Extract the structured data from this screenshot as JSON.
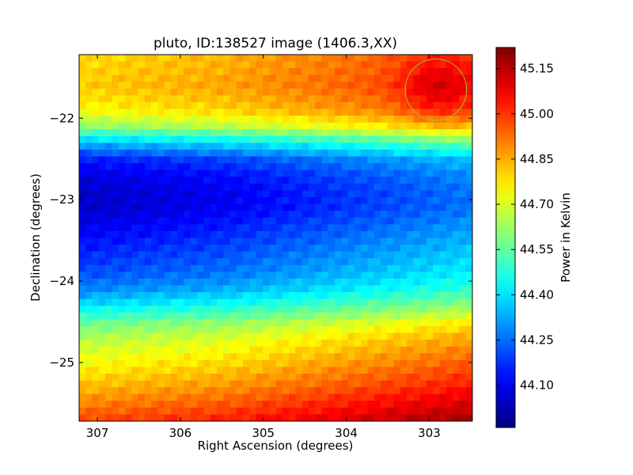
{
  "chart_data": {
    "type": "heatmap",
    "title": "pluto, ID:138527 image (1406.3,XX)",
    "xlabel": "Right Ascension (degrees)",
    "ylabel": "Declination (degrees)",
    "xlim": [
      307.22,
      302.48
    ],
    "ylim": [
      -25.72,
      -21.22
    ],
    "xticks": [
      307,
      306,
      305,
      304,
      303
    ],
    "yticks": [
      -22,
      -23,
      -24,
      -25
    ],
    "xtick_labels": [
      "307",
      "306",
      "305",
      "304",
      "303"
    ],
    "ytick_labels": [
      "−22",
      "−23",
      "−24",
      "−25"
    ],
    "colorbar": {
      "label": "Power in Kelvin",
      "vmin": 43.96,
      "vmax": 45.22,
      "ticks": [
        44.1,
        44.25,
        44.4,
        44.55,
        44.7,
        44.85,
        45.0,
        45.15
      ],
      "tick_labels": [
        "44.10",
        "44.25",
        "44.40",
        "44.55",
        "44.70",
        "44.85",
        "45.00",
        "45.15"
      ],
      "colormap": "jet"
    },
    "dec_profile": {
      "dec": [
        -21.3,
        -21.6,
        -21.9,
        -22.1,
        -22.3,
        -22.5,
        -22.7,
        -22.9,
        -23.1,
        -23.3,
        -23.5,
        -23.7,
        -23.9,
        -24.1,
        -24.3,
        -24.5,
        -24.7,
        -24.9,
        -25.1,
        -25.3,
        -25.5,
        -25.7
      ],
      "power": [
        44.84,
        44.86,
        44.8,
        44.66,
        44.4,
        44.2,
        44.13,
        44.1,
        44.1,
        44.14,
        44.18,
        44.22,
        44.26,
        44.33,
        44.45,
        44.6,
        44.7,
        44.76,
        44.82,
        44.88,
        44.95,
        45.02
      ]
    },
    "ra_gradient": {
      "ra": [
        307.2,
        305.5,
        304.0,
        302.5
      ],
      "offset": [
        -0.05,
        0.0,
        0.08,
        0.16
      ]
    },
    "circle_marker": {
      "ra": 302.92,
      "dec": -21.65,
      "radius_deg": 0.37,
      "color": "#9acd32"
    }
  }
}
